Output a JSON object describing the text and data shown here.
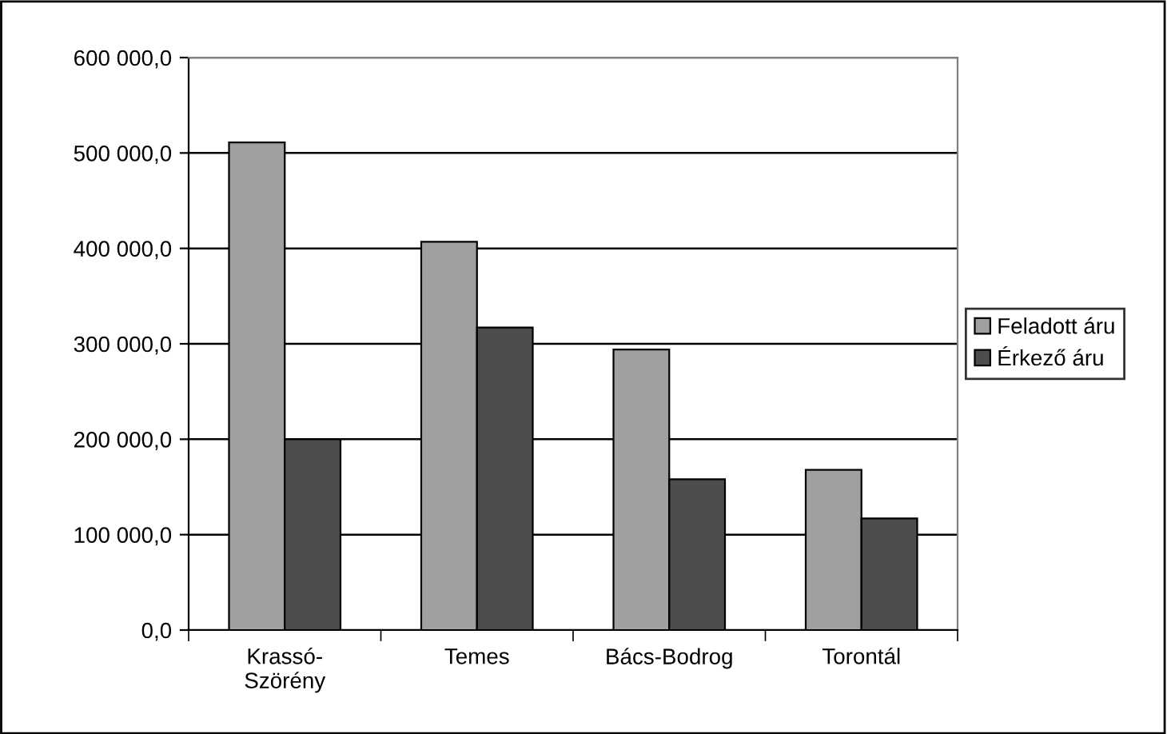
{
  "chart_data": {
    "type": "bar",
    "categories": [
      "Krassó-\nSzörény",
      "Temes",
      "Bács-Bodrog",
      "Torontál"
    ],
    "series": [
      {
        "name": "Feladott áru",
        "color": "#a0a0a0",
        "values": [
          511000,
          407000,
          294000,
          168000
        ]
      },
      {
        "name": "Érkező áru",
        "color": "#4d4d4d",
        "values": [
          200000,
          317000,
          158000,
          117000
        ]
      }
    ],
    "ylim": [
      0,
      600000
    ],
    "yticks": [
      {
        "value": 0,
        "label": "0,0"
      },
      {
        "value": 100000,
        "label": "100 000,0"
      },
      {
        "value": 200000,
        "label": "200 000,0"
      },
      {
        "value": 300000,
        "label": "300 000,0"
      },
      {
        "value": 400000,
        "label": "400 000,0"
      },
      {
        "value": 500000,
        "label": "500 000,0"
      },
      {
        "value": 600000,
        "label": "600 000,0"
      }
    ],
    "grid": "y",
    "legend": "right"
  }
}
